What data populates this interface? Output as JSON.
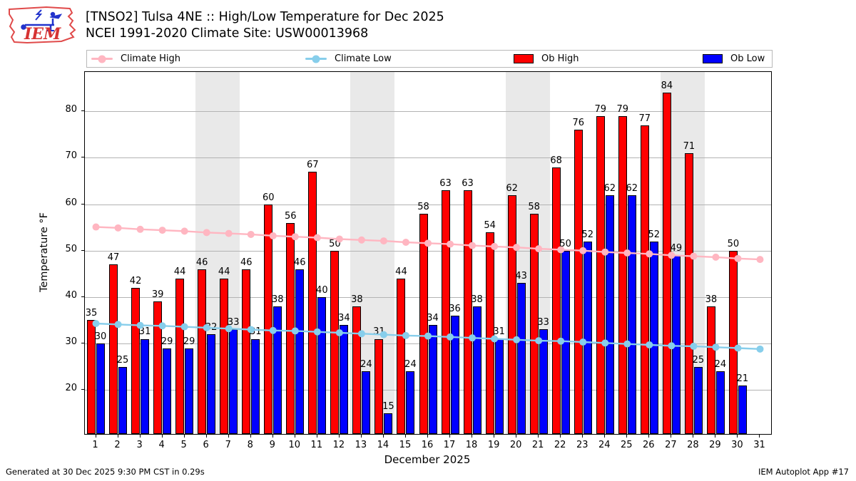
{
  "header": {
    "logo_text": "IEM"
  },
  "chart_data": {
    "type": "bar",
    "title": "[TNSO2] Tulsa 4NE :: High/Low Temperature for Dec 2025",
    "subtitle": "NCEI 1991-2020 Climate Site: USW00013968",
    "xlabel": "December 2025",
    "ylabel": "Temperature °F",
    "x": [
      1,
      2,
      3,
      4,
      5,
      6,
      7,
      8,
      9,
      10,
      11,
      12,
      13,
      14,
      15,
      16,
      17,
      18,
      19,
      20,
      21,
      22,
      23,
      24,
      25,
      26,
      27,
      28,
      29,
      30,
      31
    ],
    "ylim": [
      10.5,
      88.5
    ],
    "yticks": [
      20,
      30,
      40,
      50,
      60,
      70,
      80
    ],
    "grid": "horizontal",
    "legend_position": "top",
    "weekend_shading_days": [
      [
        6,
        7
      ],
      [
        13,
        14
      ],
      [
        20,
        21
      ],
      [
        27,
        28
      ]
    ],
    "colors": {
      "climate_high": "#ffb6c1",
      "climate_low": "#87ceeb",
      "ob_high": "#ff0000",
      "ob_low": "#0000ff",
      "weekend_band": "#e9e9e9"
    },
    "series": [
      {
        "name": "Climate High",
        "type": "line",
        "color": "#ffb6c1",
        "values": [
          55.1,
          54.9,
          54.6,
          54.4,
          54.2,
          53.9,
          53.7,
          53.5,
          53.2,
          53.0,
          52.8,
          52.5,
          52.3,
          52.1,
          51.8,
          51.6,
          51.4,
          51.1,
          50.9,
          50.7,
          50.4,
          50.2,
          50.0,
          49.7,
          49.5,
          49.3,
          49.0,
          48.8,
          48.6,
          48.3,
          48.1
        ]
      },
      {
        "name": "Climate Low",
        "type": "line",
        "color": "#87ceeb",
        "values": [
          34.3,
          34.1,
          33.9,
          33.8,
          33.6,
          33.4,
          33.2,
          33.0,
          32.8,
          32.7,
          32.5,
          32.3,
          32.1,
          31.9,
          31.7,
          31.6,
          31.4,
          31.2,
          31.0,
          30.8,
          30.6,
          30.5,
          30.3,
          30.1,
          29.9,
          29.7,
          29.5,
          29.4,
          29.2,
          29.0,
          28.8
        ]
      },
      {
        "name": "Ob High",
        "type": "bar",
        "color": "#ff0000",
        "values": [
          35,
          47,
          42,
          39,
          44,
          46,
          44,
          46,
          60,
          56,
          67,
          50,
          38,
          31,
          44,
          58,
          63,
          63,
          54,
          62,
          58,
          68,
          76,
          79,
          79,
          77,
          84,
          71,
          38,
          50,
          null
        ]
      },
      {
        "name": "Ob Low",
        "type": "bar",
        "color": "#0000ff",
        "values": [
          30,
          25,
          31,
          29,
          29,
          32,
          33,
          31,
          38,
          46,
          40,
          34,
          24,
          15,
          24,
          34,
          36,
          38,
          31,
          43,
          33,
          50,
          52,
          62,
          62,
          52,
          49,
          25,
          24,
          21,
          null
        ]
      }
    ]
  },
  "footer": {
    "generated": "Generated at 30 Dec 2025 9:30 PM CST in 0.29s",
    "app": "IEM Autoplot App #17"
  }
}
